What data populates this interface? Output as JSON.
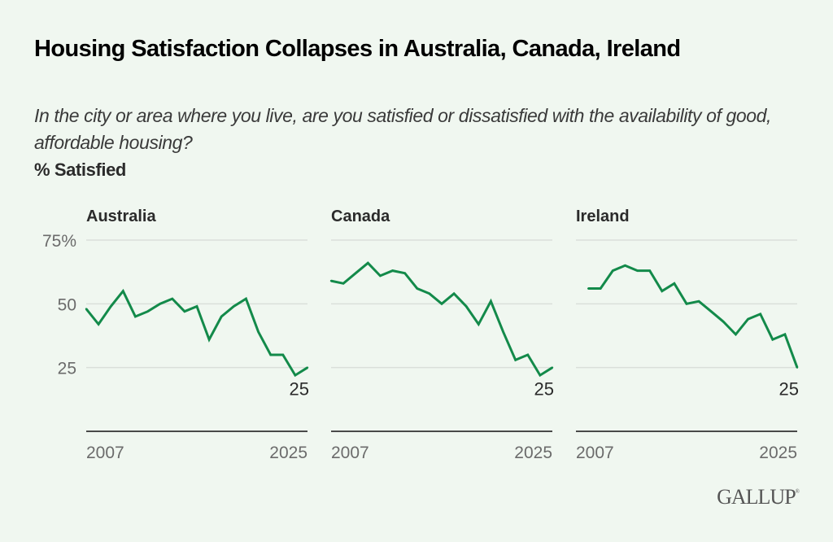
{
  "header": {
    "title": "Housing Satisfaction Collapses in Australia, Canada, Ireland",
    "subtitle": "In the city or area where you live, are you satisfied or dissatisfied with the availability of good, affordable housing?",
    "measure": "% Satisfied"
  },
  "footer": {
    "logo": "GALLUP",
    "logo_mark": "®"
  },
  "colors": {
    "line": "#138a4a",
    "background": "#f0f7f0"
  },
  "chart_data": [
    {
      "type": "line",
      "title": "Australia",
      "x": [
        2007,
        2008,
        2009,
        2010,
        2011,
        2012,
        2013,
        2014,
        2015,
        2016,
        2017,
        2018,
        2019,
        2020,
        2021,
        2022,
        2023,
        2024,
        2025
      ],
      "values": [
        48,
        42,
        49,
        55,
        45,
        47,
        50,
        52,
        47,
        49,
        36,
        45,
        49,
        52,
        39,
        30,
        30,
        22,
        25
      ],
      "end_label": "25",
      "xticks": [
        "2007",
        "2025"
      ],
      "yticks": [
        {
          "value": 75,
          "label": "75%"
        },
        {
          "value": 50,
          "label": "50"
        },
        {
          "value": 25,
          "label": "25"
        }
      ],
      "ylim": [
        0,
        75
      ],
      "xlim": [
        2007,
        2025
      ],
      "grid": true
    },
    {
      "type": "line",
      "title": "Canada",
      "x": [
        2007,
        2008,
        2009,
        2010,
        2011,
        2012,
        2013,
        2014,
        2015,
        2016,
        2017,
        2018,
        2019,
        2020,
        2021,
        2022,
        2023,
        2024,
        2025
      ],
      "values": [
        59,
        58,
        62,
        66,
        61,
        63,
        62,
        56,
        54,
        50,
        54,
        49,
        42,
        51,
        39,
        28,
        30,
        22,
        25
      ],
      "end_label": "25",
      "xticks": [
        "2007",
        "2025"
      ],
      "yticks": [
        {
          "value": 75,
          "label": ""
        },
        {
          "value": 50,
          "label": ""
        },
        {
          "value": 25,
          "label": ""
        }
      ],
      "ylim": [
        0,
        75
      ],
      "xlim": [
        2007,
        2025
      ],
      "grid": true
    },
    {
      "type": "line",
      "title": "Ireland",
      "x": [
        2008,
        2009,
        2010,
        2011,
        2012,
        2013,
        2014,
        2015,
        2016,
        2017,
        2018,
        2019,
        2020,
        2021,
        2022,
        2023,
        2024,
        2025
      ],
      "values": [
        56,
        56,
        63,
        65,
        63,
        63,
        55,
        58,
        50,
        51,
        47,
        43,
        38,
        44,
        46,
        36,
        38,
        25
      ],
      "end_label": "25",
      "xticks": [
        "2007",
        "2025"
      ],
      "yticks": [
        {
          "value": 75,
          "label": ""
        },
        {
          "value": 50,
          "label": ""
        },
        {
          "value": 25,
          "label": ""
        }
      ],
      "ylim": [
        0,
        75
      ],
      "xlim": [
        2007,
        2025
      ],
      "grid": true
    }
  ]
}
